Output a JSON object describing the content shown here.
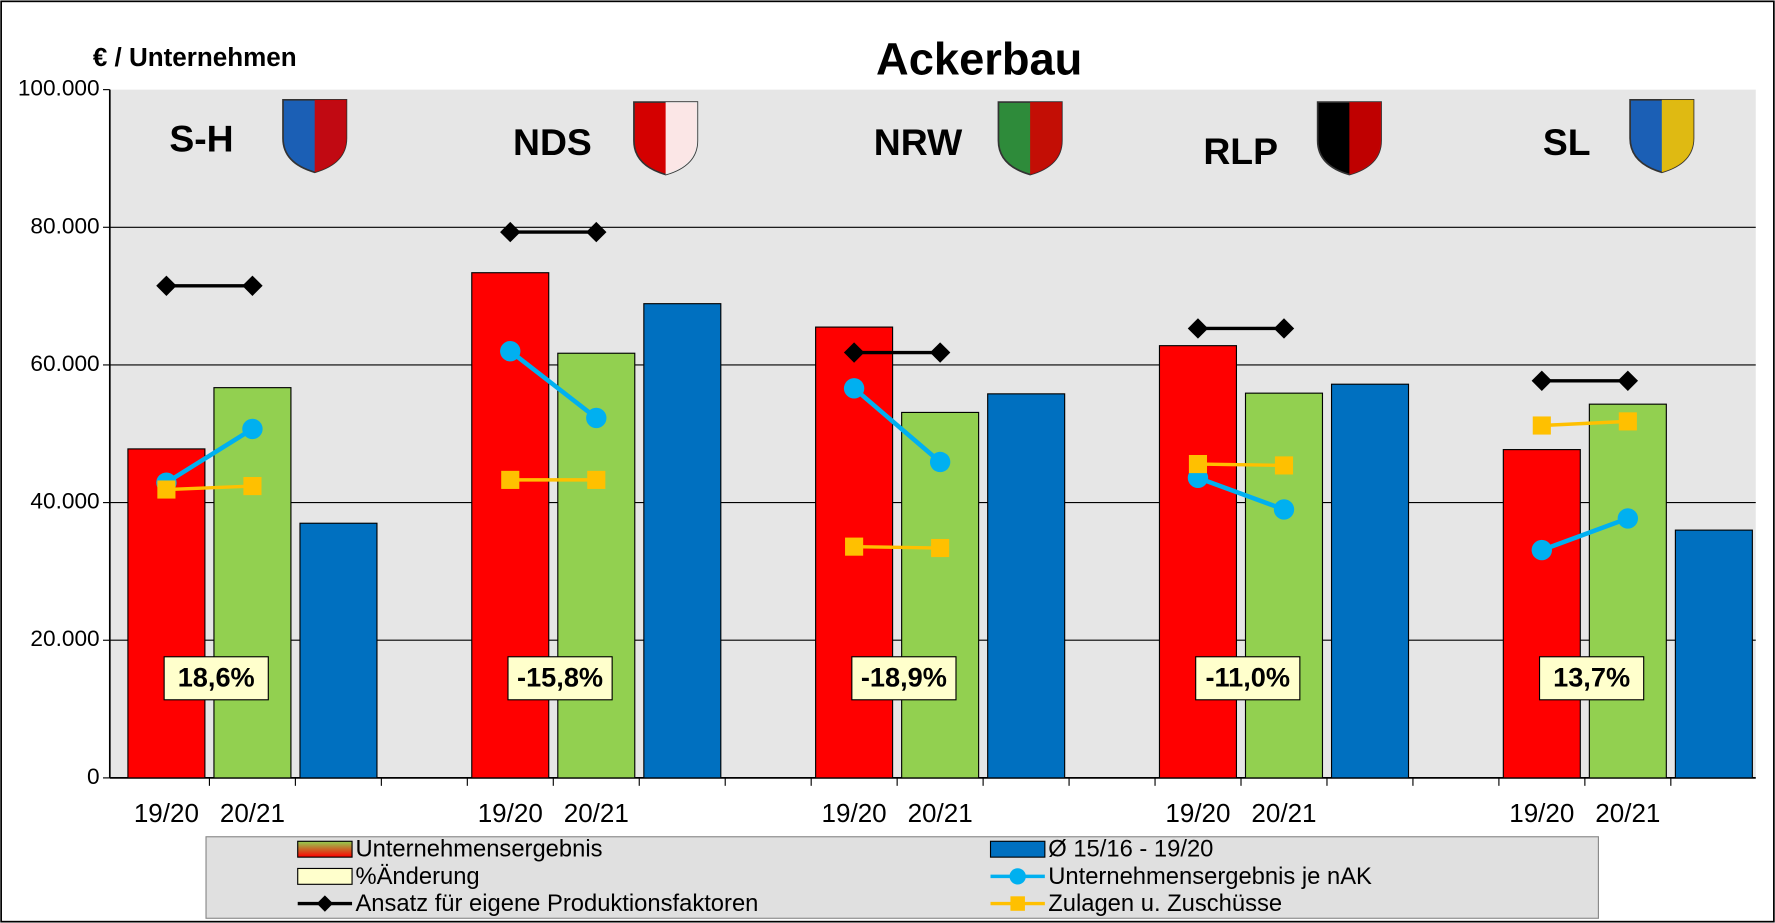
{
  "chart_data": {
    "type": "grouped-bar-line",
    "title": "Ackerbau",
    "ylabel": "€ / Unternehmen",
    "categories": [
      "S-H",
      "NDS",
      "NRW",
      "RLP",
      "SL"
    ],
    "periods": [
      "19/20",
      "20/21"
    ],
    "ylim": [
      0,
      100000
    ],
    "yticks": [
      0,
      {
        "value": 20000,
        "label": "20.000"
      },
      {
        "value": 40000,
        "label": "40.000"
      },
      {
        "value": 60000,
        "label": "60.000"
      },
      {
        "value": 80000,
        "label": "80.000"
      },
      {
        "value": 100000,
        "label": "100.000"
      }
    ],
    "grid": true,
    "series": [
      {
        "name": "Unternehmensergebnis",
        "kind": "bar-pair",
        "colors": [
          "#ff0000",
          "#92d050"
        ],
        "values": [
          [
            47800,
            56700
          ],
          [
            73400,
            61700
          ],
          [
            65500,
            53100
          ],
          [
            62800,
            55900
          ],
          [
            47700,
            54300
          ]
        ]
      },
      {
        "name": "Ø 15/16 - 19/20",
        "kind": "bar",
        "color": "#0070c0",
        "values": [
          37000,
          68900,
          55800,
          57200,
          36000
        ]
      },
      {
        "name": "%Änderung",
        "kind": "label",
        "color": "#ffffcc",
        "values": [
          18.6,
          -15.8,
          -18.9,
          -11.0,
          13.7
        ],
        "value_labels": [
          "18,6%",
          "-15,8%",
          "-18,9%",
          "-11,0%",
          "13,7%"
        ]
      },
      {
        "name": "Unternehmensergebnis je nAK",
        "kind": "line",
        "marker": "circle",
        "color": "#00b0f0",
        "values": [
          [
            42900,
            50700
          ],
          [
            62000,
            52300
          ],
          [
            56600,
            45900
          ],
          [
            43600,
            39000
          ],
          [
            33100,
            37700
          ]
        ]
      },
      {
        "name": "Ansatz für eigene Produktionsfaktoren",
        "kind": "line",
        "marker": "diamond",
        "color": "#000000",
        "values": [
          [
            71500,
            71500
          ],
          [
            79300,
            79300
          ],
          [
            61800,
            61800
          ],
          [
            65300,
            65300
          ],
          [
            57700,
            57700
          ]
        ]
      },
      {
        "name": "Zulagen u. Zuschüsse",
        "kind": "line",
        "marker": "square",
        "color": "#ffc000",
        "values": [
          [
            41900,
            42400
          ],
          [
            43300,
            43300
          ],
          [
            33600,
            33400
          ],
          [
            45600,
            45400
          ],
          [
            51200,
            51800
          ]
        ]
      }
    ]
  }
}
